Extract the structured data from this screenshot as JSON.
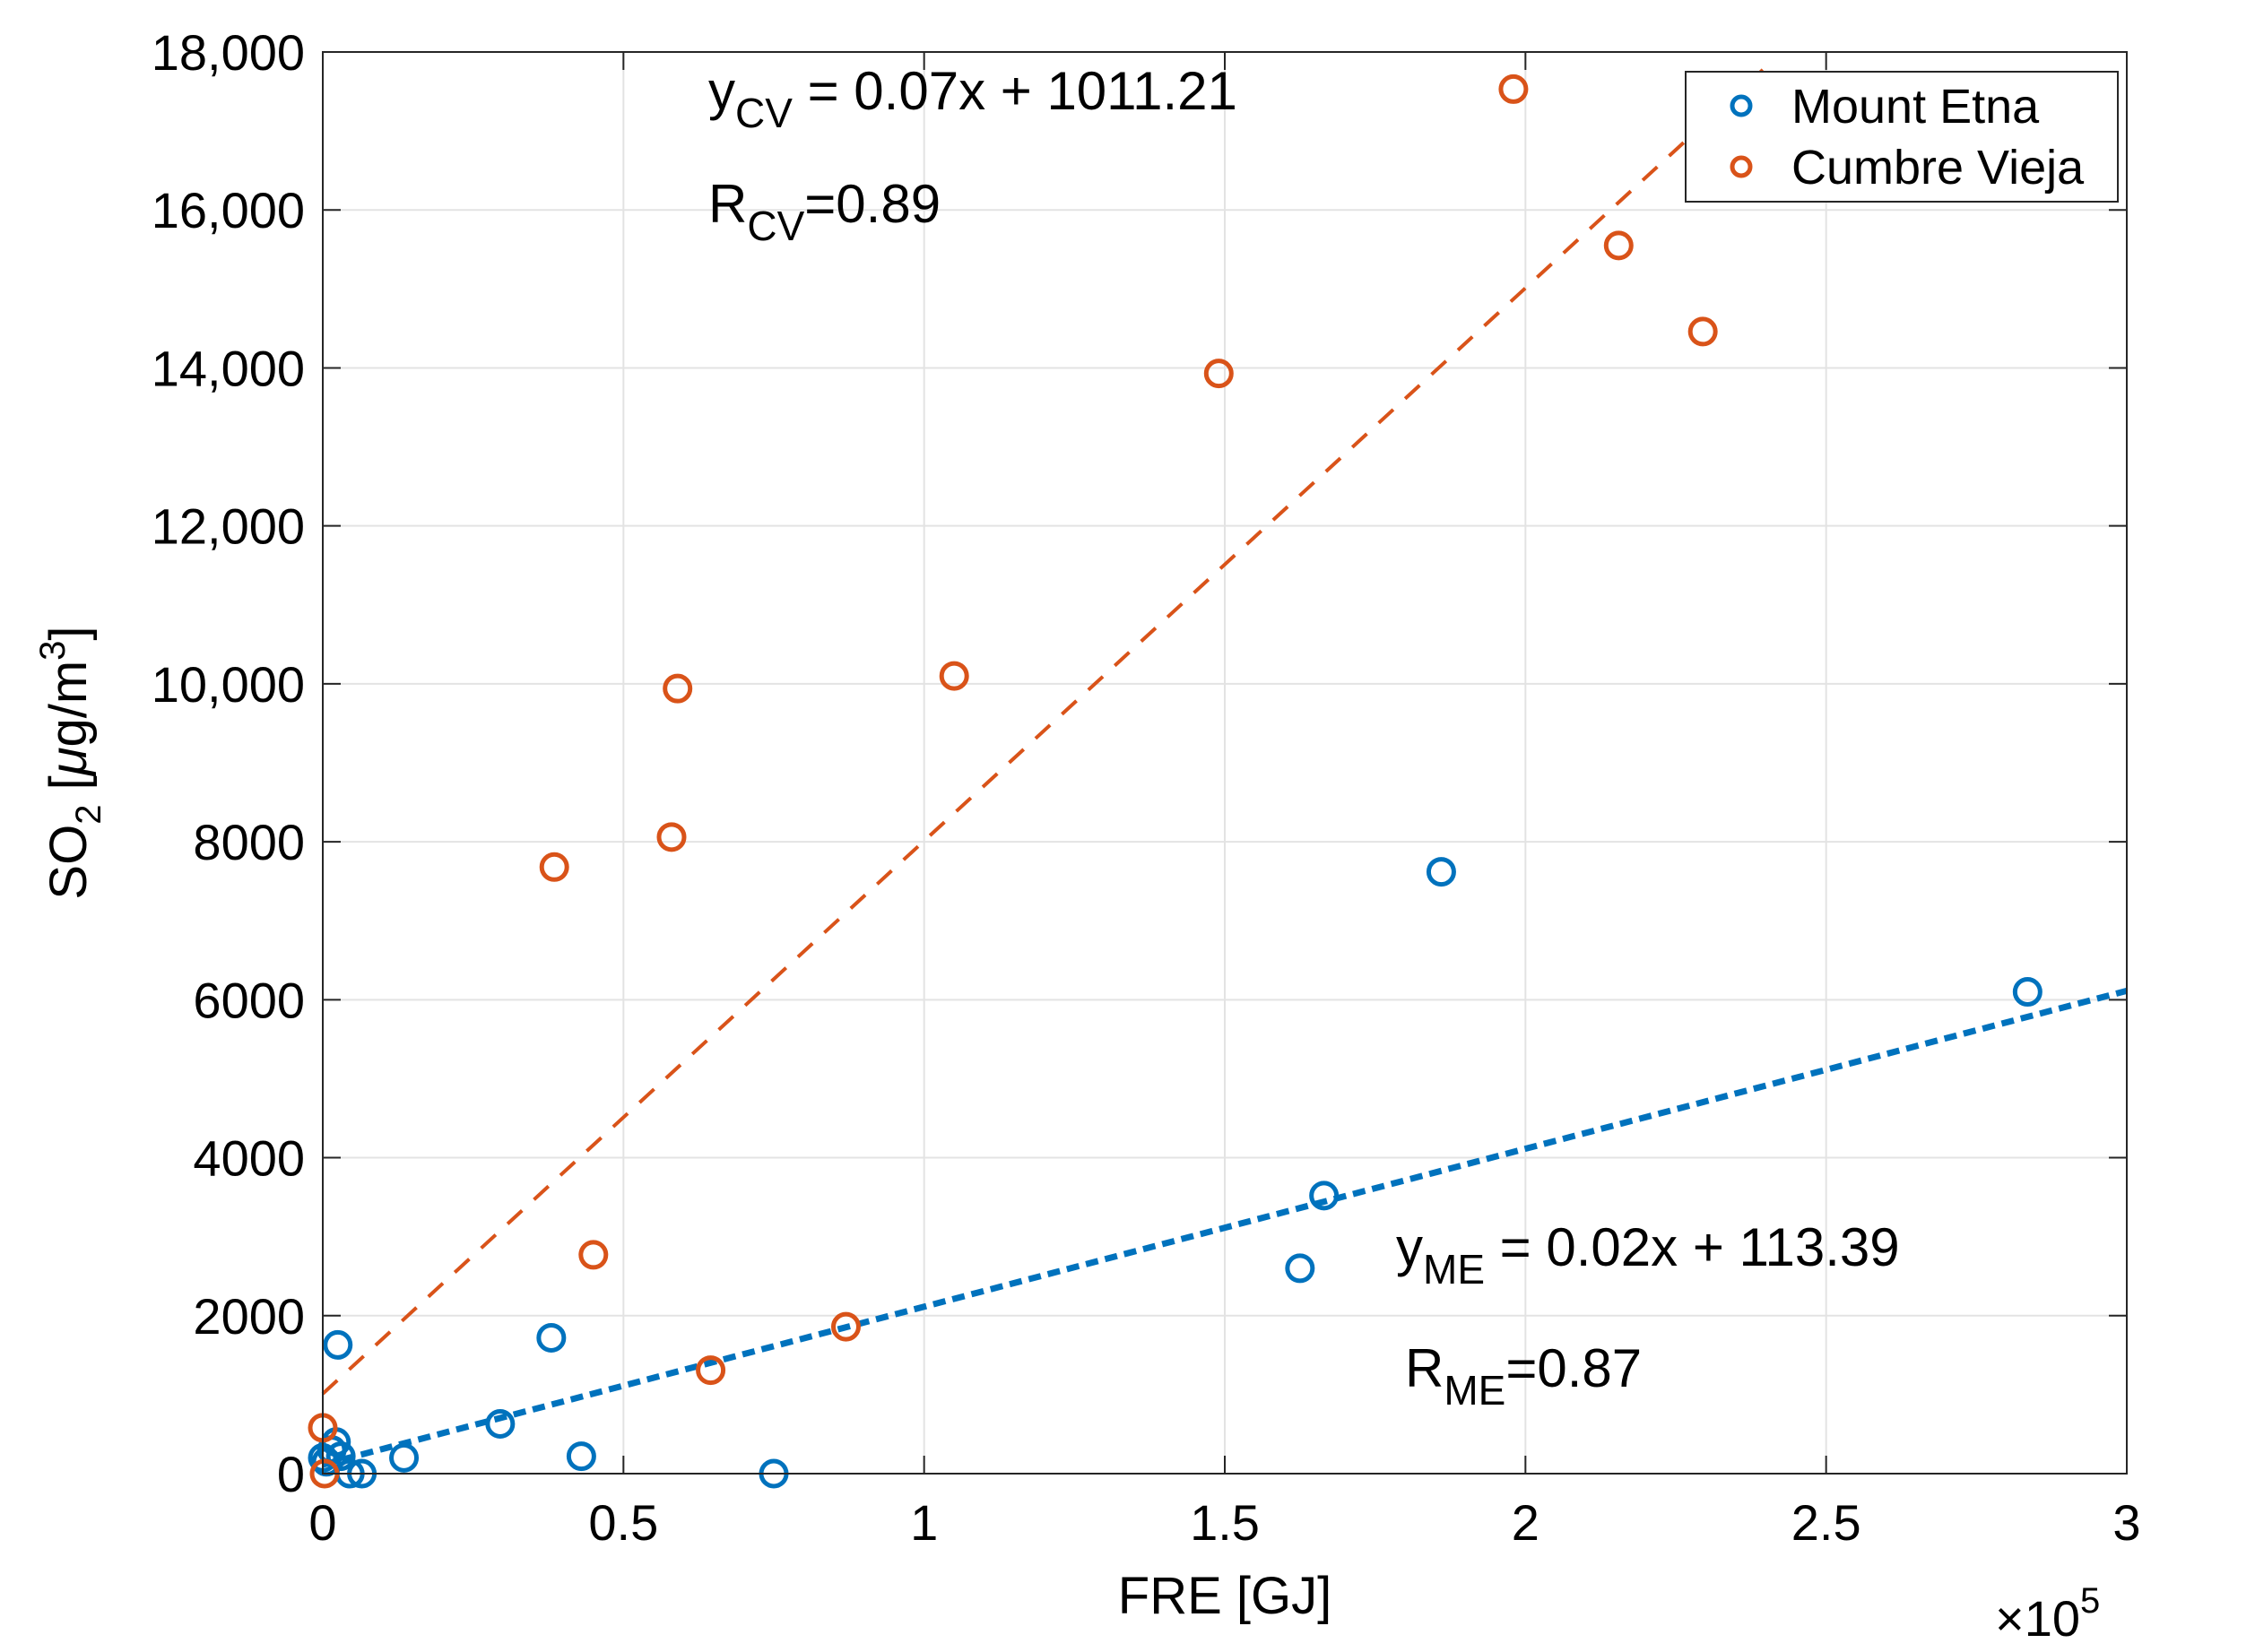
{
  "chart_data": {
    "type": "scatter",
    "title": "",
    "xlabel": "FRE [GJ]",
    "ylabel": {
      "base": "SO",
      "sub": "2",
      "unit_pre": " [",
      "mu": "μ",
      "unit_mid": "g/m",
      "sup": "3",
      "unit_post": "]"
    },
    "x_multiplier": {
      "times": "×",
      "base": "10",
      "exp": "5"
    },
    "xlim": [
      0,
      300000
    ],
    "ylim": [
      0,
      18000
    ],
    "grid": true,
    "x_ticks": [
      {
        "value": 0,
        "label": "0"
      },
      {
        "value": 50000,
        "label": "0.5"
      },
      {
        "value": 100000,
        "label": "1"
      },
      {
        "value": 150000,
        "label": "1.5"
      },
      {
        "value": 200000,
        "label": "2"
      },
      {
        "value": 250000,
        "label": "2.5"
      },
      {
        "value": 300000,
        "label": "3"
      }
    ],
    "y_ticks": [
      {
        "value": 0,
        "label": "0"
      },
      {
        "value": 2000,
        "label": "2000"
      },
      {
        "value": 4000,
        "label": "4000"
      },
      {
        "value": 6000,
        "label": "6000"
      },
      {
        "value": 8000,
        "label": "8000"
      },
      {
        "value": 10000,
        "label": "10,000"
      },
      {
        "value": 12000,
        "label": "12,000"
      },
      {
        "value": 14000,
        "label": "14,000"
      },
      {
        "value": 16000,
        "label": "16,000"
      },
      {
        "value": 18000,
        "label": "18,000"
      }
    ],
    "legend_position": "top-right",
    "series": [
      {
        "name": "Mount Etna",
        "color": "#0072BD",
        "points": [
          [
            0,
            200
          ],
          [
            600,
            150
          ],
          [
            1500,
            300
          ],
          [
            2200,
            400
          ],
          [
            2500,
            1630
          ],
          [
            3000,
            220
          ],
          [
            4500,
            0
          ],
          [
            6500,
            0
          ],
          [
            13500,
            200
          ],
          [
            29500,
            630
          ],
          [
            38000,
            1720
          ],
          [
            43000,
            220
          ],
          [
            75000,
            0
          ],
          [
            162500,
            2600
          ],
          [
            166500,
            3520
          ],
          [
            186000,
            7620
          ],
          [
            283500,
            6100
          ]
        ],
        "fit": {
          "slope": 0.02,
          "intercept": 113.39,
          "x_range": [
            0,
            300000
          ]
        }
      },
      {
        "name": "Cumbre Vieja",
        "color": "#D95319",
        "points": [
          [
            0,
            580
          ],
          [
            300,
            0
          ],
          [
            38500,
            7680
          ],
          [
            45000,
            2770
          ],
          [
            58000,
            8060
          ],
          [
            59000,
            9940
          ],
          [
            64500,
            1310
          ],
          [
            87000,
            1860
          ],
          [
            105000,
            10100
          ],
          [
            149000,
            13930
          ],
          [
            198000,
            17530
          ],
          [
            215500,
            15550
          ],
          [
            229500,
            14460
          ]
        ],
        "fit": {
          "slope": 0.07,
          "intercept": 1011.21,
          "x_range": [
            0,
            240000
          ]
        }
      }
    ],
    "annotations": {
      "cv_eq": {
        "y": "y",
        "sub": "CV",
        "rest": " = 0.07x + 1011.21"
      },
      "cv_r": {
        "r": "R",
        "sub": "CV",
        "rest": "=0.89"
      },
      "me_eq": {
        "y": "y",
        "sub": "ME",
        "rest": " = 0.02x + 113.39"
      },
      "me_r": {
        "r": "R",
        "sub": "ME",
        "rest": "=0.87"
      }
    }
  }
}
